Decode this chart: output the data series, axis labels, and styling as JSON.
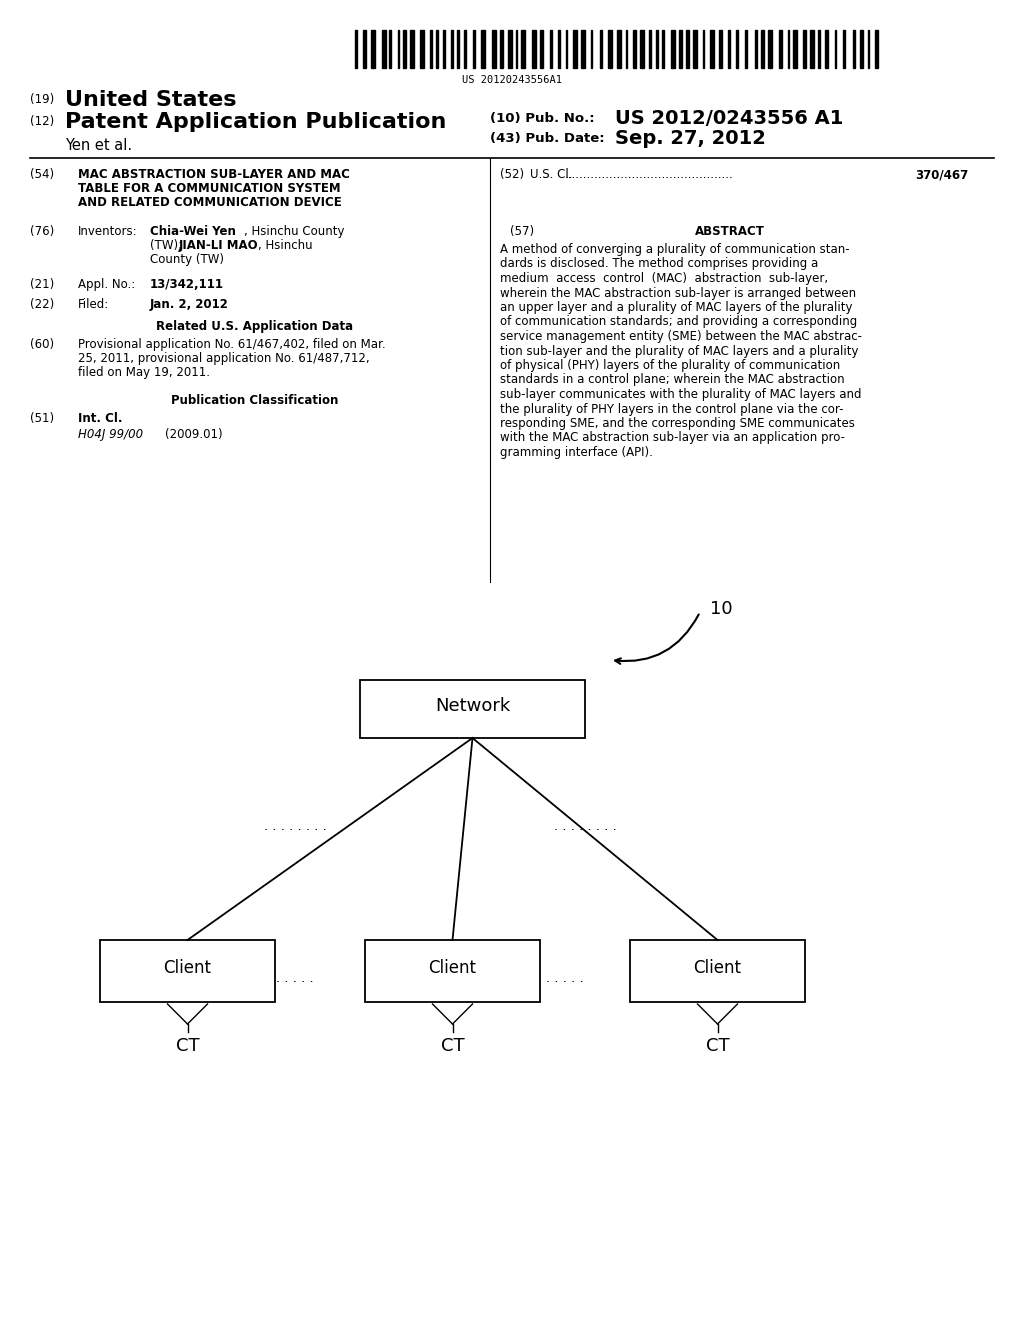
{
  "background_color": "#ffffff",
  "barcode_text": "US 20120243556A1",
  "header": {
    "country_label": "(19)",
    "country": "United States",
    "type_label": "(12)",
    "type": "Patent Application Publication",
    "pub_no_label": "(10) Pub. No.:",
    "pub_no": "US 2012/0243556 A1",
    "authors": "Yen et al.",
    "pub_date_label": "(43) Pub. Date:",
    "pub_date": "Sep. 27, 2012"
  },
  "left_col": {
    "title_num": "(54)",
    "title_line1": "MAC ABSTRACTION SUB-LAYER AND MAC",
    "title_line2": "TABLE FOR A COMMUNICATION SYSTEM",
    "title_line3": "AND RELATED COMMUNICATION DEVICE",
    "inventors_num": "(76)",
    "inventors_label": "Inventors:",
    "inv_line1_bold": "Chia-Wei Yen",
    "inv_line1_normal": ", Hsinchu County",
    "inv_line2_normal": "(TW); ",
    "inv_line2_bold": "JIAN-LI MAO",
    "inv_line2_end": ", Hsinchu",
    "inv_line3": "County (TW)",
    "appl_num": "(21)",
    "appl_label": "Appl. No.:",
    "appl_value": "13/342,111",
    "filed_num": "(22)",
    "filed_label": "Filed:",
    "filed_value": "Jan. 2, 2012",
    "related_header": "Related U.S. Application Data",
    "related_num": "(60)",
    "related_line1": "Provisional application No. 61/467,402, filed on Mar.",
    "related_line2": "25, 2011, provisional application No. 61/487,712,",
    "related_line3": "filed on May 19, 2011.",
    "pub_class_header": "Publication Classification",
    "int_cl_num": "(51)",
    "int_cl_label": "Int. Cl.",
    "int_cl_value": "H04J 99/00",
    "int_cl_year": "(2009.01)",
    "us_cl_num": "(52)",
    "us_cl_label": "U.S. Cl.",
    "us_cl_dots": ".............................................",
    "us_cl_value": "370/467"
  },
  "right_col": {
    "abstract_num": "(57)",
    "abstract_title": "ABSTRACT",
    "abstract_line1": "A method of converging a plurality of communication stan-",
    "abstract_line2": "dards is disclosed. The method comprises providing a",
    "abstract_line3": "medium  access  control  (MAC)  abstraction  sub-layer,",
    "abstract_line4": "wherein the MAC abstraction sub-layer is arranged between",
    "abstract_line5": "an upper layer and a plurality of MAC layers of the plurality",
    "abstract_line6": "of communication standards; and providing a corresponding",
    "abstract_line7": "service management entity (SME) between the MAC abstrac-",
    "abstract_line8": "tion sub-layer and the plurality of MAC layers and a plurality",
    "abstract_line9": "of physical (PHY) layers of the plurality of communication",
    "abstract_line10": "standards in a control plane; wherein the MAC abstraction",
    "abstract_line11": "sub-layer communicates with the plurality of MAC layers and",
    "abstract_line12": "the plurality of PHY layers in the control plane via the cor-",
    "abstract_line13": "responding SME, and the corresponding SME communicates",
    "abstract_line14": "with the MAC abstraction sub-layer via an application pro-",
    "abstract_line15": "gramming interface (API)."
  },
  "diagram": {
    "figure_num": "10",
    "network_label": "Network",
    "client_label": "Client",
    "ct_label": "CT",
    "dots_v": ". . . . . . . .",
    "dots_h": ". . . . ."
  }
}
